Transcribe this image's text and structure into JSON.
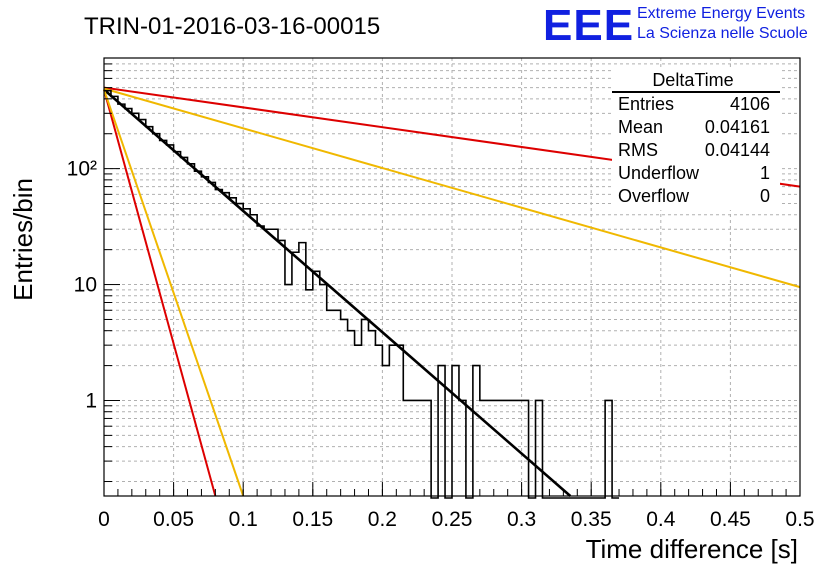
{
  "chart_data": {
    "type": "histogram",
    "title": "TRIN-01-2016-03-16-00015",
    "xlabel": "Time difference [s]",
    "ylabel": "Entries/bin",
    "xlim": [
      0,
      0.5
    ],
    "ylim": [
      0.15,
      900
    ],
    "yscale": "log",
    "grid": true,
    "x_ticks": [
      "0",
      "0.05",
      "0.1",
      "0.15",
      "0.2",
      "0.25",
      "0.3",
      "0.35",
      "0.4",
      "0.45",
      "0.5"
    ],
    "y_ticks": [
      "1",
      "10",
      "10²"
    ],
    "bin_width": 0.005,
    "histogram": {
      "name": "DeltaTime",
      "color": "#000000",
      "bins": [
        {
          "x0": 0.0,
          "y": 470
        },
        {
          "x0": 0.005,
          "y": 420
        },
        {
          "x0": 0.01,
          "y": 360
        },
        {
          "x0": 0.015,
          "y": 330
        },
        {
          "x0": 0.02,
          "y": 300
        },
        {
          "x0": 0.025,
          "y": 265
        },
        {
          "x0": 0.03,
          "y": 230
        },
        {
          "x0": 0.035,
          "y": 200
        },
        {
          "x0": 0.04,
          "y": 175
        },
        {
          "x0": 0.045,
          "y": 160
        },
        {
          "x0": 0.05,
          "y": 140
        },
        {
          "x0": 0.055,
          "y": 125
        },
        {
          "x0": 0.06,
          "y": 110
        },
        {
          "x0": 0.065,
          "y": 95
        },
        {
          "x0": 0.07,
          "y": 85
        },
        {
          "x0": 0.075,
          "y": 76
        },
        {
          "x0": 0.08,
          "y": 66
        },
        {
          "x0": 0.085,
          "y": 62
        },
        {
          "x0": 0.09,
          "y": 56
        },
        {
          "x0": 0.095,
          "y": 50
        },
        {
          "x0": 0.1,
          "y": 45
        },
        {
          "x0": 0.105,
          "y": 40
        },
        {
          "x0": 0.11,
          "y": 32
        },
        {
          "x0": 0.115,
          "y": 30
        },
        {
          "x0": 0.12,
          "y": 30
        },
        {
          "x0": 0.125,
          "y": 24
        },
        {
          "x0": 0.13,
          "y": 10
        },
        {
          "x0": 0.135,
          "y": 19
        },
        {
          "x0": 0.14,
          "y": 23
        },
        {
          "x0": 0.145,
          "y": 9
        },
        {
          "x0": 0.15,
          "y": 13
        },
        {
          "x0": 0.155,
          "y": 10
        },
        {
          "x0": 0.16,
          "y": 6
        },
        {
          "x0": 0.165,
          "y": 6
        },
        {
          "x0": 0.17,
          "y": 5
        },
        {
          "x0": 0.175,
          "y": 4
        },
        {
          "x0": 0.18,
          "y": 3
        },
        {
          "x0": 0.185,
          "y": 5
        },
        {
          "x0": 0.19,
          "y": 4
        },
        {
          "x0": 0.195,
          "y": 3
        },
        {
          "x0": 0.2,
          "y": 2
        },
        {
          "x0": 0.205,
          "y": 3
        },
        {
          "x0": 0.21,
          "y": 3
        },
        {
          "x0": 0.215,
          "y": 1
        },
        {
          "x0": 0.22,
          "y": 1
        },
        {
          "x0": 0.225,
          "y": 1
        },
        {
          "x0": 0.23,
          "y": 1
        },
        {
          "x0": 0.235,
          "y": 0
        },
        {
          "x0": 0.24,
          "y": 2
        },
        {
          "x0": 0.245,
          "y": 0
        },
        {
          "x0": 0.25,
          "y": 2
        },
        {
          "x0": 0.255,
          "y": 1
        },
        {
          "x0": 0.26,
          "y": 0
        },
        {
          "x0": 0.265,
          "y": 2
        },
        {
          "x0": 0.27,
          "y": 1
        },
        {
          "x0": 0.275,
          "y": 1
        },
        {
          "x0": 0.28,
          "y": 1
        },
        {
          "x0": 0.285,
          "y": 1
        },
        {
          "x0": 0.29,
          "y": 1
        },
        {
          "x0": 0.295,
          "y": 1
        },
        {
          "x0": 0.3,
          "y": 1
        },
        {
          "x0": 0.305,
          "y": 0
        },
        {
          "x0": 0.31,
          "y": 1
        },
        {
          "x0": 0.315,
          "y": 0
        },
        {
          "x0": 0.32,
          "y": 0
        },
        {
          "x0": 0.325,
          "y": 0
        },
        {
          "x0": 0.33,
          "y": 0
        },
        {
          "x0": 0.335,
          "y": 0
        },
        {
          "x0": 0.34,
          "y": 0
        },
        {
          "x0": 0.345,
          "y": 0
        },
        {
          "x0": 0.35,
          "y": 0
        },
        {
          "x0": 0.355,
          "y": 0
        },
        {
          "x0": 0.36,
          "y": 1
        },
        {
          "x0": 0.365,
          "y": 0
        }
      ]
    },
    "series": [
      {
        "color": "#000000",
        "points": [
          [
            0,
            480
          ],
          [
            0.335,
            0.15
          ]
        ]
      },
      {
        "color": "#dd0000",
        "points": [
          [
            0,
            500
          ],
          [
            0.5,
            70
          ]
        ]
      },
      {
        "color": "#f0b800",
        "points": [
          [
            0,
            490
          ],
          [
            0.5,
            9.5
          ]
        ]
      },
      {
        "color": "#dd0000",
        "points": [
          [
            0,
            480
          ],
          [
            0.08,
            0.15
          ]
        ]
      },
      {
        "color": "#f0b800",
        "points": [
          [
            0,
            480
          ],
          [
            0.1,
            0.15
          ]
        ]
      }
    ],
    "stats_box": {
      "title": "DeltaTime",
      "rows": [
        {
          "label": "Entries",
          "value": "4106"
        },
        {
          "label": "Mean",
          "value": "0.04161"
        },
        {
          "label": "RMS",
          "value": "0.04144"
        },
        {
          "label": "Underflow",
          "value": "1"
        },
        {
          "label": "Overflow",
          "value": "0"
        }
      ]
    }
  },
  "logo": {
    "mark": "EEE",
    "line1": "Extreme Energy Events",
    "line2": "La Scienza nelle Scuole",
    "color": "#1020e0"
  }
}
